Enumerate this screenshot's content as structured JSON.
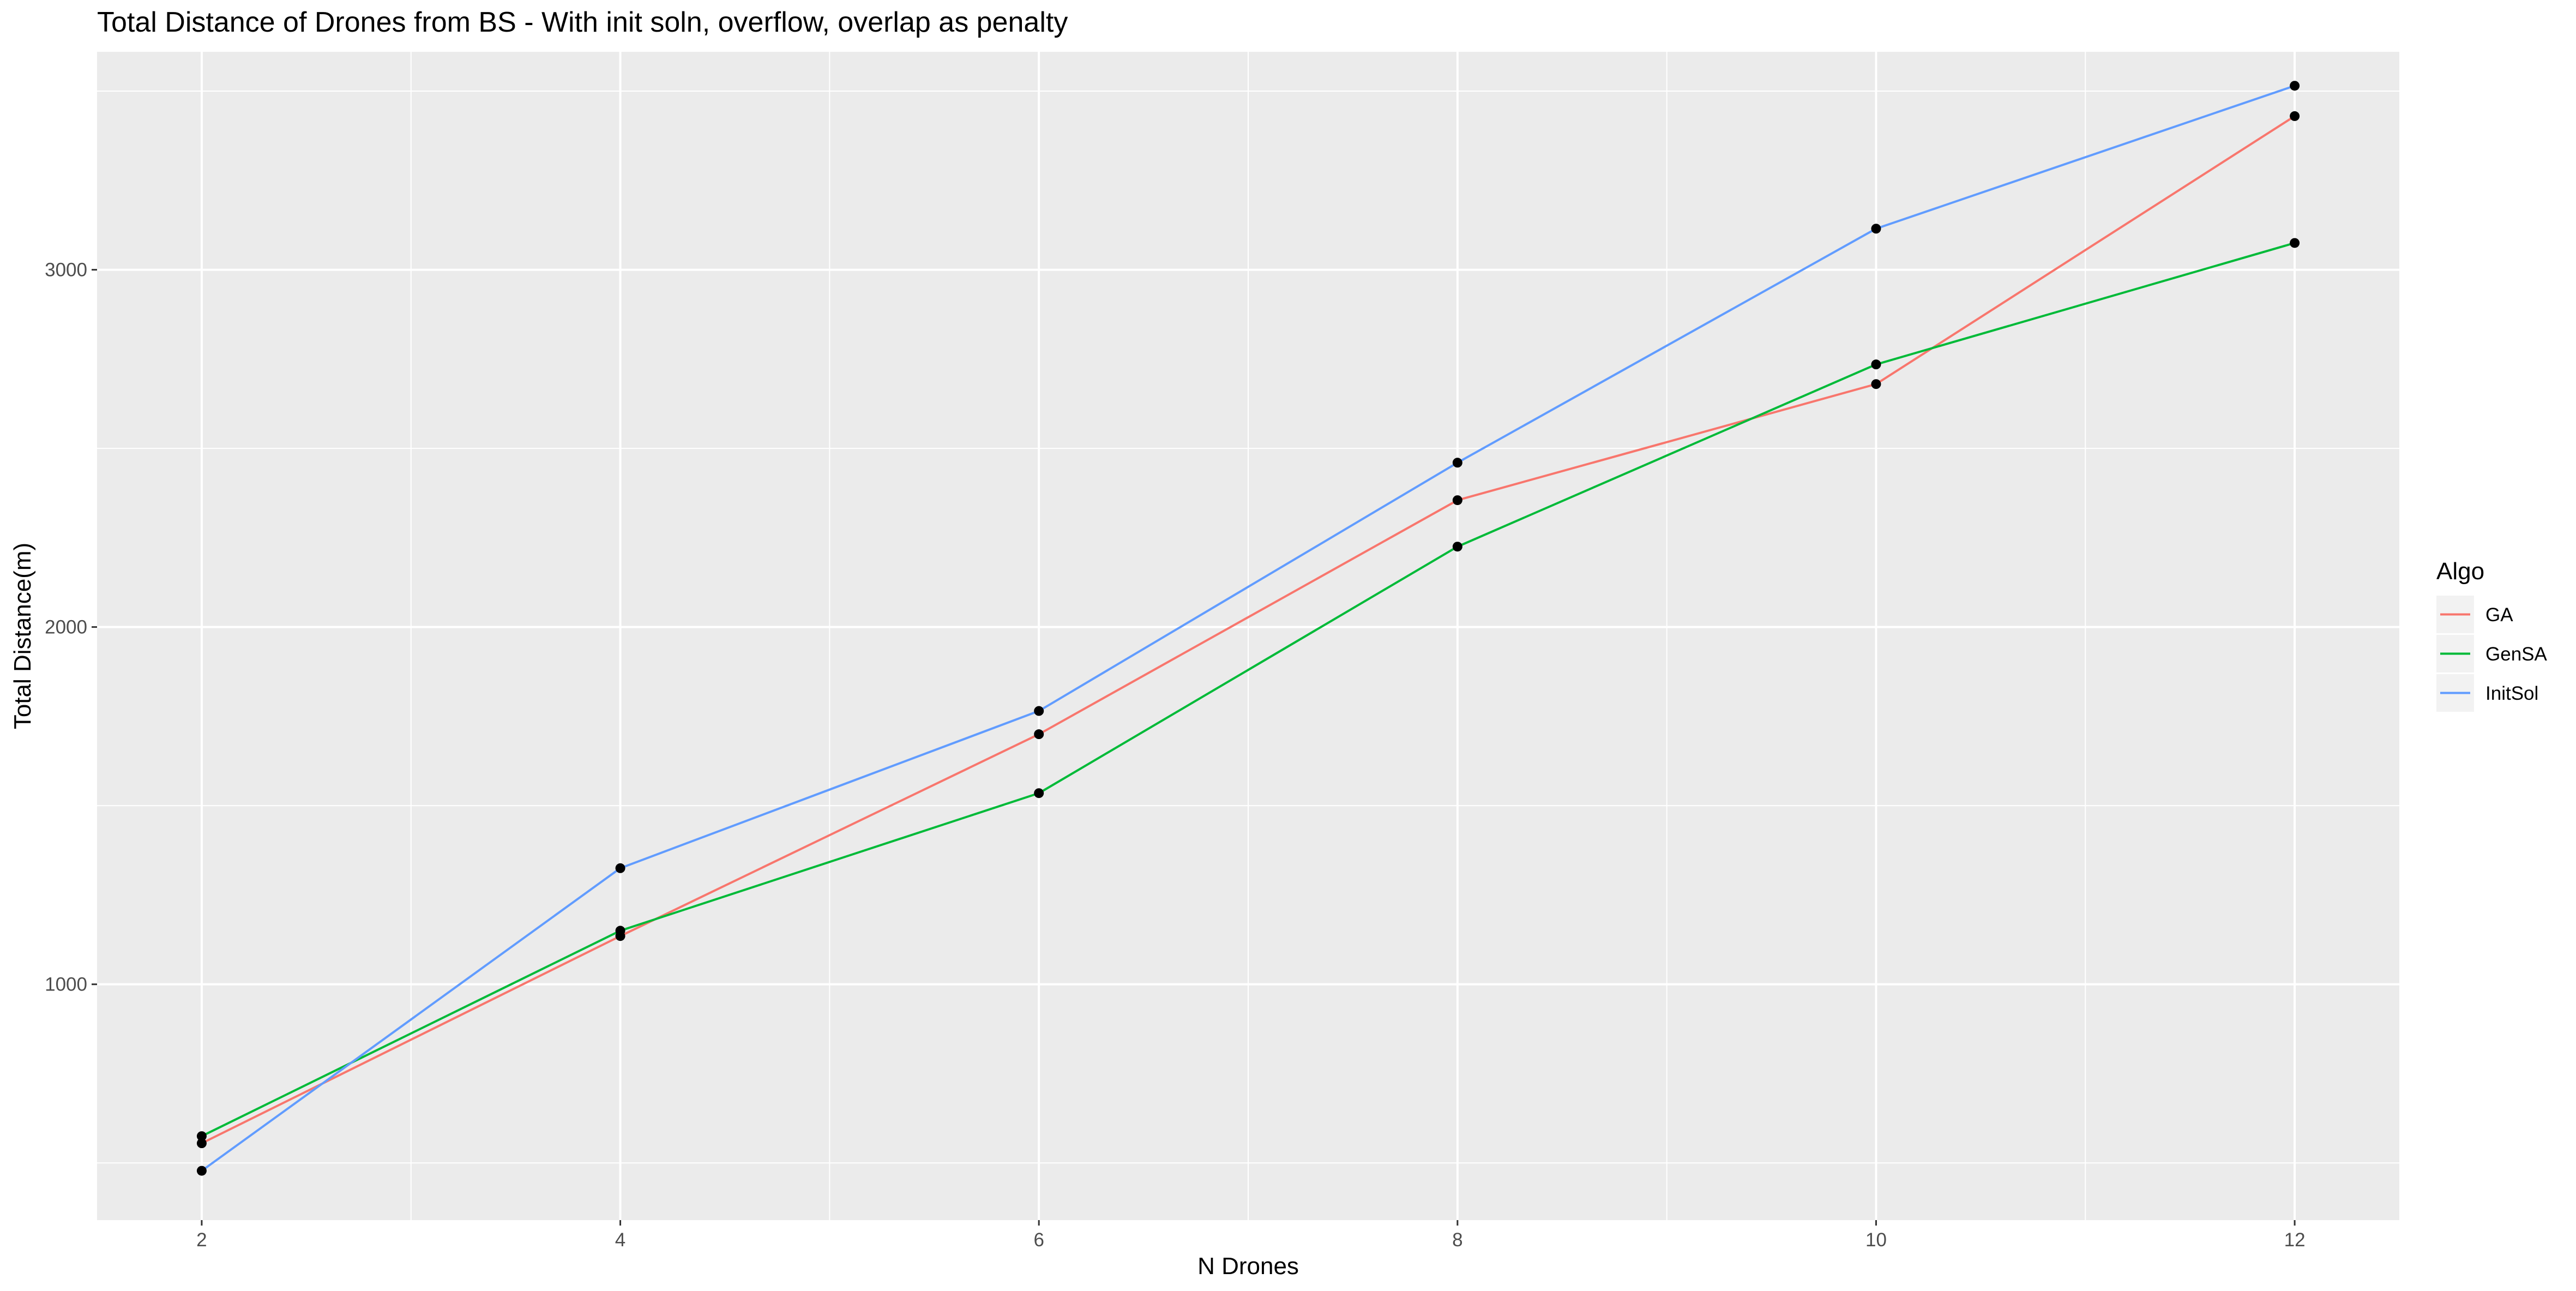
{
  "chart_data": {
    "type": "line",
    "title": "Total Distance of Drones from BS - With init soln, overflow, overlap as penalty",
    "xlabel": "N Drones",
    "ylabel": "Total Distance(m)",
    "x": [
      2,
      4,
      6,
      8,
      10,
      12
    ],
    "xlim": [
      1.5,
      12.5
    ],
    "ylim": [
      340,
      3610
    ],
    "xticks": [
      "2",
      "4",
      "6",
      "8",
      "10",
      "12"
    ],
    "yticks": [
      "1000",
      "2000",
      "3000"
    ],
    "grid": true,
    "legend": {
      "title": "Algo",
      "position": "right"
    },
    "series": [
      {
        "name": "GA",
        "color": "#F8766D",
        "values": [
          555,
          1135,
          1700,
          2355,
          2680,
          3430
        ]
      },
      {
        "name": "GenSA",
        "color": "#00BA38",
        "values": [
          575,
          1150,
          1535,
          2225,
          2735,
          3075
        ]
      },
      {
        "name": "InitSol",
        "color": "#619CFF",
        "values": [
          478,
          1325,
          1765,
          2460,
          3115,
          3515
        ]
      }
    ],
    "point_color": "#000000",
    "panel_background": "#EBEBEB",
    "grid_color": "#FFFFFF"
  }
}
